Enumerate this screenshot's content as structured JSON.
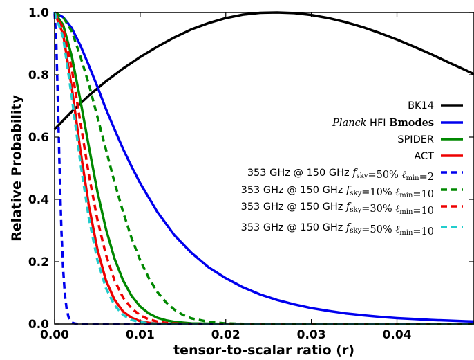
{
  "chart_data": {
    "type": "line",
    "title": "",
    "xlabel": "tensor-to-scalar ratio (r)",
    "ylabel": "Relative Probability",
    "xlim": [
      0,
      0.049
    ],
    "ylim": [
      0,
      1.0
    ],
    "xticks": [
      "0.00",
      "0.01",
      "0.02",
      "0.03",
      "0.04"
    ],
    "xtick_values": [
      0,
      0.01,
      0.02,
      0.03,
      0.04
    ],
    "yticks": [
      "0.0",
      "0.2",
      "0.4",
      "0.6",
      "0.8",
      "1.0"
    ],
    "ytick_values": [
      0,
      0.2,
      0.4,
      0.6,
      0.8,
      1.0
    ],
    "grid": false,
    "legend_position": "center-right",
    "series": [
      {
        "name": "BK14",
        "name_parts": [
          {
            "t": "BK14",
            "s": "sans"
          }
        ],
        "color": "#000000",
        "style": "solid",
        "x": [
          0,
          0.002,
          0.004,
          0.006,
          0.008,
          0.01,
          0.012,
          0.014,
          0.016,
          0.018,
          0.02,
          0.022,
          0.024,
          0.026,
          0.028,
          0.03,
          0.032,
          0.034,
          0.036,
          0.038,
          0.04,
          0.042,
          0.044,
          0.046,
          0.048,
          0.049
        ],
        "y": [
          0.625,
          0.682,
          0.733,
          0.779,
          0.82,
          0.857,
          0.89,
          0.92,
          0.946,
          0.966,
          0.982,
          0.993,
          0.999,
          1.0,
          0.998,
          0.992,
          0.982,
          0.969,
          0.953,
          0.934,
          0.913,
          0.89,
          0.866,
          0.84,
          0.815,
          0.802
        ]
      },
      {
        "name": "Planck HFI Bmodes",
        "name_parts": [
          {
            "t": "Planck",
            "s": "italic-serif"
          },
          {
            "t": " HFI ",
            "s": "sans"
          },
          {
            "t": "Bmodes",
            "s": "bold-serif"
          }
        ],
        "color": "#0000ee",
        "style": "solid",
        "x": [
          0,
          0.001,
          0.002,
          0.003,
          0.004,
          0.005,
          0.006,
          0.007,
          0.008,
          0.009,
          0.01,
          0.012,
          0.014,
          0.016,
          0.018,
          0.02,
          0.022,
          0.024,
          0.026,
          0.028,
          0.03,
          0.032,
          0.034,
          0.036,
          0.038,
          0.04,
          0.042,
          0.044,
          0.046,
          0.048,
          0.049
        ],
        "y": [
          1.0,
          0.985,
          0.95,
          0.895,
          0.83,
          0.762,
          0.69,
          0.625,
          0.562,
          0.505,
          0.452,
          0.36,
          0.285,
          0.228,
          0.182,
          0.147,
          0.118,
          0.095,
          0.077,
          0.063,
          0.051,
          0.042,
          0.034,
          0.028,
          0.023,
          0.019,
          0.016,
          0.013,
          0.011,
          0.009,
          0.008
        ]
      },
      {
        "name": "SPIDER",
        "name_parts": [
          {
            "t": "SPIDER",
            "s": "sans"
          }
        ],
        "color": "#008800",
        "style": "solid",
        "x": [
          0,
          0.001,
          0.002,
          0.003,
          0.004,
          0.005,
          0.006,
          0.007,
          0.008,
          0.009,
          0.01,
          0.011,
          0.012,
          0.013,
          0.014,
          0.016,
          0.018,
          0.02,
          0.022,
          0.025,
          0.049
        ],
        "y": [
          1.0,
          0.96,
          0.86,
          0.72,
          0.57,
          0.425,
          0.305,
          0.21,
          0.14,
          0.09,
          0.056,
          0.034,
          0.02,
          0.012,
          0.007,
          0.002,
          0.001,
          0.0003,
          0.0001,
          0,
          0
        ]
      },
      {
        "name": "ACT",
        "name_parts": [
          {
            "t": "ACT",
            "s": "sans"
          }
        ],
        "color": "#ee0000",
        "style": "solid",
        "x": [
          0,
          0.001,
          0.002,
          0.003,
          0.004,
          0.005,
          0.006,
          0.007,
          0.008,
          0.009,
          0.01,
          0.011,
          0.012,
          0.014,
          0.016,
          0.02,
          0.049
        ],
        "y": [
          1.0,
          0.93,
          0.76,
          0.56,
          0.38,
          0.24,
          0.14,
          0.078,
          0.04,
          0.02,
          0.009,
          0.004,
          0.0015,
          0.0002,
          0,
          0,
          0
        ]
      },
      {
        "name": "353 GHz @ 150 GHz fsky=50% lmin=2",
        "name_parts": [
          {
            "t": "353 GHz @ 150 GHz  ",
            "s": "sans"
          },
          {
            "t": "f",
            "s": "italic-serif"
          },
          {
            "t": "sky",
            "s": "sub"
          },
          {
            "t": "=50%  ",
            "s": "serif"
          },
          {
            "t": "ℓ",
            "s": "italic-serif"
          },
          {
            "t": "min",
            "s": "sub"
          },
          {
            "t": "=2",
            "s": "serif"
          }
        ],
        "color": "#0000ee",
        "style": "dashed",
        "x": [
          0,
          0.0002,
          0.0004,
          0.0006,
          0.0008,
          0.001,
          0.0012,
          0.0014,
          0.0016,
          0.0018,
          0.002,
          0.0022,
          0.0024,
          0.0026,
          0.0028,
          0.003,
          0.0033,
          0.004,
          0.049
        ],
        "y": [
          1.0,
          0.9,
          0.7,
          0.48,
          0.3,
          0.175,
          0.095,
          0.05,
          0.025,
          0.012,
          0.006,
          0.003,
          0.0015,
          0.0007,
          0.0003,
          0.0001,
          0,
          0,
          0
        ]
      },
      {
        "name": "353 GHz @ 150 GHz fsky=10% lmin=10",
        "name_parts": [
          {
            "t": "353 GHz @ 150 GHz  ",
            "s": "sans"
          },
          {
            "t": "f",
            "s": "italic-serif"
          },
          {
            "t": "sky",
            "s": "sub"
          },
          {
            "t": "=10%  ",
            "s": "serif"
          },
          {
            "t": "ℓ",
            "s": "italic-serif"
          },
          {
            "t": "min",
            "s": "sub"
          },
          {
            "t": "=10",
            "s": "serif"
          }
        ],
        "color": "#008800",
        "style": "dashed",
        "x": [
          0,
          0.001,
          0.002,
          0.003,
          0.004,
          0.005,
          0.006,
          0.007,
          0.008,
          0.009,
          0.01,
          0.011,
          0.012,
          0.013,
          0.014,
          0.015,
          0.016,
          0.018,
          0.02,
          0.022,
          0.024,
          0.027,
          0.049
        ],
        "y": [
          1.0,
          0.985,
          0.94,
          0.86,
          0.77,
          0.665,
          0.56,
          0.455,
          0.36,
          0.275,
          0.205,
          0.148,
          0.103,
          0.07,
          0.046,
          0.029,
          0.018,
          0.007,
          0.002,
          0.0006,
          0.0002,
          0,
          0
        ]
      },
      {
        "name": "353 GHz @ 150 GHz fsky=30% lmin=10",
        "name_parts": [
          {
            "t": "353 GHz @ 150 GHz  ",
            "s": "sans"
          },
          {
            "t": "f",
            "s": "italic-serif"
          },
          {
            "t": "sky",
            "s": "sub"
          },
          {
            "t": "=30%  ",
            "s": "serif"
          },
          {
            "t": "ℓ",
            "s": "italic-serif"
          },
          {
            "t": "min",
            "s": "sub"
          },
          {
            "t": "=10",
            "s": "serif"
          }
        ],
        "color": "#ee0000",
        "style": "dashed",
        "x": [
          0,
          0.001,
          0.002,
          0.003,
          0.004,
          0.005,
          0.006,
          0.007,
          0.008,
          0.009,
          0.01,
          0.011,
          0.012,
          0.013,
          0.014,
          0.016,
          0.018,
          0.02,
          0.049
        ],
        "y": [
          1.0,
          0.95,
          0.82,
          0.65,
          0.48,
          0.335,
          0.222,
          0.14,
          0.085,
          0.05,
          0.028,
          0.015,
          0.008,
          0.004,
          0.002,
          0.0004,
          0.0001,
          0,
          0
        ]
      },
      {
        "name": "353 GHz @ 150 GHz fsky=50% lmin=10",
        "name_parts": [
          {
            "t": "353 GHz @ 150 GHz  ",
            "s": "sans"
          },
          {
            "t": "f",
            "s": "italic-serif"
          },
          {
            "t": "sky",
            "s": "sub"
          },
          {
            "t": "=50%  ",
            "s": "serif"
          },
          {
            "t": "ℓ",
            "s": "italic-serif"
          },
          {
            "t": "min",
            "s": "sub"
          },
          {
            "t": "=10",
            "s": "serif"
          }
        ],
        "color": "#22cccc",
        "style": "dashed",
        "x": [
          0,
          0.001,
          0.002,
          0.003,
          0.004,
          0.005,
          0.006,
          0.007,
          0.008,
          0.009,
          0.01,
          0.011,
          0.012,
          0.014,
          0.016,
          0.02,
          0.049
        ],
        "y": [
          1.0,
          0.92,
          0.73,
          0.52,
          0.34,
          0.205,
          0.115,
          0.06,
          0.029,
          0.013,
          0.006,
          0.0025,
          0.001,
          0.0001,
          0,
          0,
          0
        ]
      }
    ]
  }
}
